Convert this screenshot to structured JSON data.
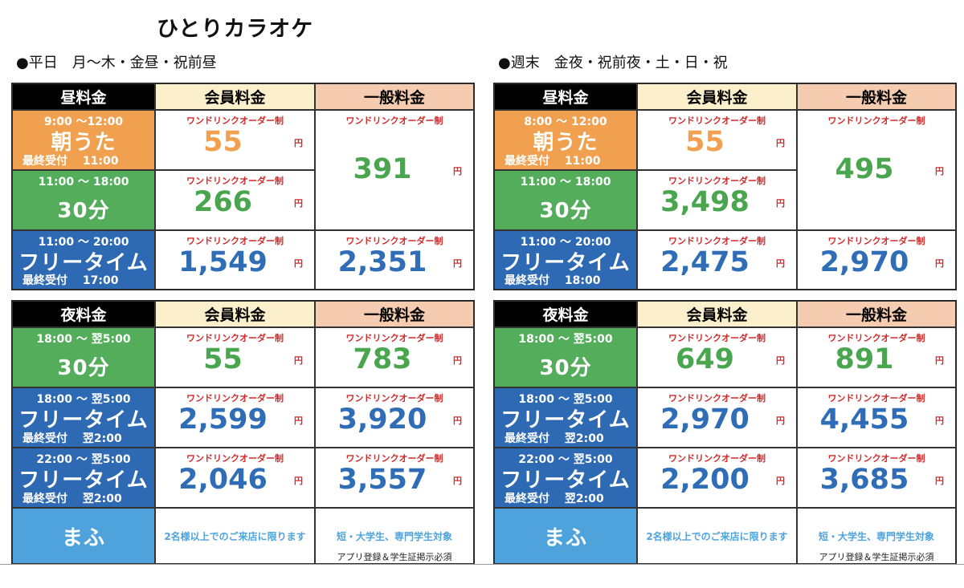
{
  "title": "ひとりカラオケ",
  "weekday_heading": "●平日　月～木・金昼・祝前昼",
  "weekend_heading": "●週末　金夜・祝前夜・土・日・祝",
  "headers": {
    "day": "昼料金",
    "night": "夜料金",
    "member": "会員料金",
    "general": "一般料金"
  },
  "one_drink": "ワンドリンクオーダー制",
  "yen": "円",
  "labels": {
    "asauta": "朝うた",
    "thirty": "30分",
    "freetime": "フリータイム",
    "mafu": "まふ"
  },
  "weekday": {
    "asa_time": "9:00 ～12:00",
    "asa_last": "最終受付　 11:00",
    "asa_member": "55",
    "day_general": "391",
    "min30_time": "11:00 ～ 18:00",
    "min30_member": "266",
    "free_time": "11:00 ～ 20:00",
    "free_last": "最終受付　 17:00",
    "free_member": "1,549",
    "free_general": "2,351",
    "n30_time": "18:00 ～ 翌5:00",
    "n30_member": "55",
    "n30_general": "783",
    "nf1_time": "18:00 ～ 翌5:00",
    "nf1_last": "最終受付　 翌2:00",
    "nf1_member": "2,599",
    "nf1_general": "3,920",
    "nf2_time": "22:00 ～ 翌5:00",
    "nf2_last": "最終受付　 翌2:00",
    "nf2_member": "2,046",
    "nf2_general": "3,557"
  },
  "weekend": {
    "asa_time": "8:00 ～ 12:00",
    "asa_last": "最終受付　 11:00",
    "asa_member": "55",
    "day_general": "495",
    "min30_time": "11:00 ～ 18:00",
    "min30_member": "3,498",
    "free_time": "11:00 ～ 20:00",
    "free_last": "最終受付　 18:00",
    "free_member": "2,475",
    "free_general": "2,970",
    "n30_time": "18:00 ～ 翌5:00",
    "n30_member": "649",
    "n30_general": "891",
    "nf1_time": "18:00 ～ 翌5:00",
    "nf1_last": "最終受付　 翌2:00",
    "nf1_member": "2,970",
    "nf1_general": "4,455",
    "nf2_time": "22:00 ～ 翌5:00",
    "nf2_last": "最終受付　 翌2:00",
    "nf2_member": "2,200",
    "nf2_general": "3,685"
  },
  "mafu_member_note": "2名様以上でのご来店に限ります",
  "mafu_general_note1": "短・大学生、専門学生対象",
  "mafu_general_note2": "アプリ登録＆学生証掲示必須"
}
